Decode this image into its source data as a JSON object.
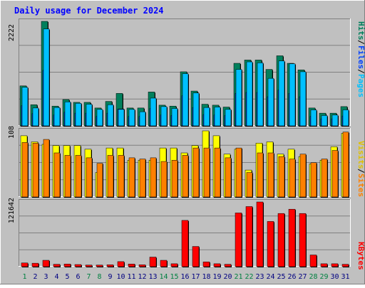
{
  "title": "Daily usage for December 2024",
  "colors": {
    "frame_bg": "#c0c0c0",
    "title": "#0000ff",
    "hits": "#00805c",
    "files": "#0040ff",
    "pages": "#00c0ff",
    "visits": "#ffff00",
    "sites": "#ff8000",
    "kbytes": "#ff0000",
    "day_weekend": "#008040",
    "day_weekday": "#000080"
  },
  "chart_data": [
    {
      "type": "bar",
      "panel": "pages-files-hits",
      "categories": [
        "1",
        "2",
        "3",
        "4",
        "5",
        "6",
        "7",
        "8",
        "9",
        "10",
        "11",
        "12",
        "13",
        "14",
        "15",
        "16",
        "17",
        "18",
        "19",
        "20",
        "21",
        "22",
        "23",
        "24",
        "25",
        "26",
        "27",
        "28",
        "29",
        "30",
        "31"
      ],
      "series": [
        {
          "name": "Hits",
          "values": [
            850,
            450,
            2222,
            420,
            560,
            500,
            500,
            380,
            520,
            690,
            380,
            380,
            720,
            440,
            420,
            1150,
            740,
            460,
            440,
            400,
            1330,
            1400,
            1400,
            1200,
            1490,
            1330,
            1190,
            380,
            270,
            270,
            410
          ]
        },
        {
          "name": "Files",
          "values": [
            430,
            260,
            1180,
            230,
            290,
            270,
            270,
            200,
            270,
            360,
            200,
            200,
            370,
            230,
            220,
            640,
            390,
            240,
            230,
            220,
            690,
            710,
            710,
            620,
            760,
            690,
            620,
            200,
            150,
            150,
            210
          ]
        },
        {
          "name": "Pages",
          "values": [
            820,
            380,
            2060,
            390,
            510,
            480,
            460,
            350,
            450,
            350,
            350,
            300,
            590,
            410,
            370,
            1110,
            700,
            390,
            400,
            350,
            1200,
            1360,
            1340,
            1010,
            1380,
            1320,
            1150,
            340,
            220,
            230,
            340
          ]
        }
      ],
      "ymax_label": "2222",
      "legend": {
        "pages": "Pages",
        "files": "Files",
        "hits": "Hits",
        "sep": "/"
      }
    },
    {
      "type": "bar",
      "panel": "sites-visits",
      "categories": [
        "1",
        "2",
        "3",
        "4",
        "5",
        "6",
        "7",
        "8",
        "9",
        "10",
        "11",
        "12",
        "13",
        "14",
        "15",
        "16",
        "17",
        "18",
        "19",
        "20",
        "21",
        "22",
        "23",
        "24",
        "25",
        "26",
        "27",
        "28",
        "29",
        "30",
        "31"
      ],
      "series": [
        {
          "name": "Visits",
          "values": [
            100,
            90,
            86,
            84,
            84,
            84,
            78,
            40,
            80,
            80,
            60,
            60,
            60,
            80,
            80,
            72,
            84,
            108,
            100,
            70,
            78,
            44,
            88,
            90,
            70,
            78,
            66,
            54,
            60,
            82,
            104
          ]
        },
        {
          "name": "Sites",
          "values": [
            89,
            88,
            94,
            72,
            68,
            68,
            64,
            55,
            68,
            68,
            64,
            62,
            64,
            58,
            60,
            68,
            80,
            80,
            80,
            64,
            80,
            40,
            72,
            72,
            66,
            62,
            70,
            56,
            62,
            76,
            106
          ]
        }
      ],
      "ymax_label": "108",
      "legend": {
        "sites": "Sites",
        "visits": "Visits",
        "sep": "/"
      }
    },
    {
      "type": "bar",
      "panel": "kbytes",
      "categories": [
        "1",
        "2",
        "3",
        "4",
        "5",
        "6",
        "7",
        "8",
        "9",
        "10",
        "11",
        "12",
        "13",
        "14",
        "15",
        "16",
        "17",
        "18",
        "19",
        "20",
        "21",
        "22",
        "23",
        "24",
        "25",
        "26",
        "27",
        "28",
        "29",
        "30",
        "31"
      ],
      "series": [
        {
          "name": "KBytes",
          "values": [
            7000,
            6500,
            12000,
            4500,
            5000,
            4000,
            3000,
            3000,
            3500,
            9500,
            5000,
            3500,
            18000,
            12000,
            5500,
            87000,
            38000,
            9000,
            5500,
            4500,
            101000,
            113000,
            121642,
            85000,
            100000,
            108000,
            100000,
            22000,
            5500,
            5500,
            4500
          ]
        }
      ],
      "ymax_label": "121642",
      "legend": {
        "kbytes": "KBytes"
      }
    }
  ],
  "x_labels": [
    {
      "t": "1",
      "w": 1
    },
    {
      "t": "2",
      "w": 0
    },
    {
      "t": "3",
      "w": 0
    },
    {
      "t": "4",
      "w": 0
    },
    {
      "t": "5",
      "w": 0
    },
    {
      "t": "6",
      "w": 0
    },
    {
      "t": "7",
      "w": 1
    },
    {
      "t": "8",
      "w": 1
    },
    {
      "t": "9",
      "w": 0
    },
    {
      "t": "10",
      "w": 0
    },
    {
      "t": "11",
      "w": 0
    },
    {
      "t": "12",
      "w": 0
    },
    {
      "t": "13",
      "w": 0
    },
    {
      "t": "14",
      "w": 1
    },
    {
      "t": "15",
      "w": 1
    },
    {
      "t": "16",
      "w": 0
    },
    {
      "t": "17",
      "w": 0
    },
    {
      "t": "18",
      "w": 0
    },
    {
      "t": "19",
      "w": 0
    },
    {
      "t": "20",
      "w": 0
    },
    {
      "t": "21",
      "w": 1
    },
    {
      "t": "22",
      "w": 1
    },
    {
      "t": "23",
      "w": 0
    },
    {
      "t": "24",
      "w": 0
    },
    {
      "t": "25",
      "w": 0
    },
    {
      "t": "26",
      "w": 0
    },
    {
      "t": "27",
      "w": 0
    },
    {
      "t": "28",
      "w": 1
    },
    {
      "t": "29",
      "w": 1
    },
    {
      "t": "30",
      "w": 0
    },
    {
      "t": "31",
      "w": 0
    }
  ]
}
